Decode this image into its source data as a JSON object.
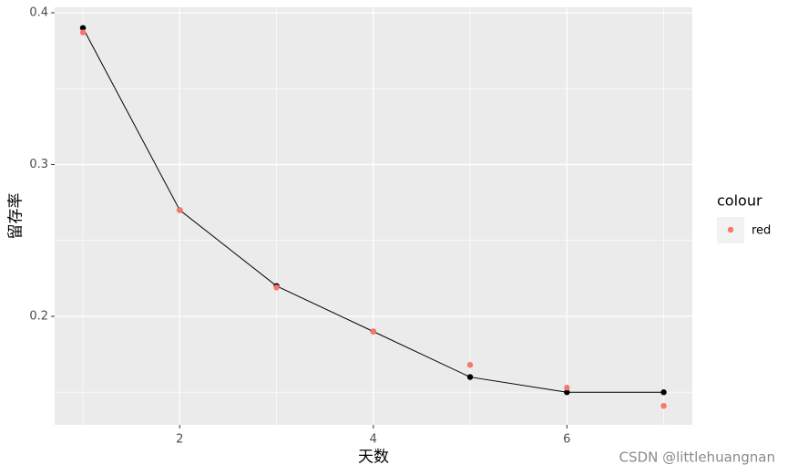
{
  "chart_data": {
    "type": "line",
    "x_label": "天数",
    "y_label": "留存率",
    "x": [
      1,
      2,
      3,
      4,
      5,
      6,
      7
    ],
    "series": [
      {
        "color": "#000000",
        "line": true,
        "values": [
          0.39,
          0.27,
          0.22,
          0.19,
          0.16,
          0.15,
          0.15
        ]
      },
      {
        "name": "red",
        "color": "#F8766D",
        "line": false,
        "values": [
          0.387,
          0.27,
          0.219,
          0.19,
          0.168,
          0.153,
          0.141
        ]
      }
    ],
    "legend_title": "colour",
    "xlim": [
      0.708,
      7.296
    ],
    "xticks": [
      2,
      4,
      6
    ],
    "ylim": [
      0.1285,
      0.4036
    ],
    "yticks": [
      0.2,
      0.3,
      0.4
    ],
    "grid": true,
    "legend_position": "right",
    "watermark": "CSDN @littlehuangnan"
  }
}
